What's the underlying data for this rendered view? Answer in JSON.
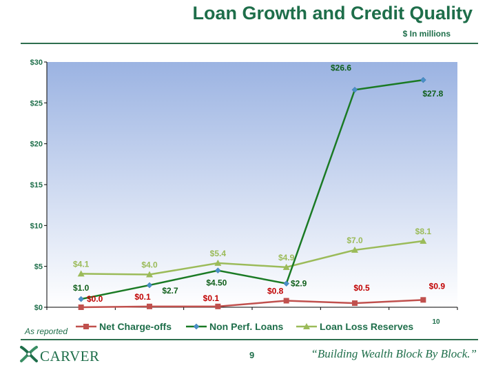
{
  "slide": {
    "title": "Loan Growth and Credit Quality",
    "subtitle": "$ In millions",
    "note": "As reported",
    "page_number": "9",
    "logo_text": "CARVER",
    "tagline": "“Building Wealth Block By Block.”",
    "axis_fragment": "10",
    "colors": {
      "title": "#1e6e4a",
      "rule": "#2e6e4e",
      "plot_top": "#9bb3e2",
      "plot_bottom": "#ffffff"
    }
  },
  "chart_data": {
    "type": "line",
    "categories": [
      "",
      "",
      "",
      "",
      "",
      ""
    ],
    "ylim": [
      0,
      30
    ],
    "yticks": [
      0,
      5,
      10,
      15,
      20,
      25,
      30
    ],
    "ytick_labels": [
      "$0",
      "$5",
      "$10",
      "$15",
      "$20",
      "$25",
      "$30"
    ],
    "grid": false,
    "legend": "bottom",
    "series": [
      {
        "name": "Net Charge-offs",
        "color": "#c0504d",
        "marker": "square",
        "values": [
          0.0,
          0.1,
          0.1,
          0.8,
          0.5,
          0.9
        ],
        "labels": [
          "$0.0",
          "$0.1",
          "$0.1",
          "$0.8",
          "$0.5",
          "$0.9"
        ]
      },
      {
        "name": "Non Perf. Loans",
        "color": "#1a7a24",
        "marker": "diamond",
        "values": [
          1.0,
          2.7,
          4.5,
          2.9,
          26.6,
          27.8
        ],
        "labels": [
          "$1.0",
          "$2.7",
          "$4.50",
          "$2.9",
          "$26.6",
          "$27.8"
        ]
      },
      {
        "name": "Loan Loss Reserves",
        "color": "#9bbb59",
        "marker": "triangle",
        "values": [
          4.1,
          4.0,
          5.4,
          4.9,
          7.0,
          8.1
        ],
        "labels": [
          "$4.1",
          "$4.0",
          "$5.4",
          "$4.9",
          "$7.0",
          "$8.1"
        ]
      }
    ]
  }
}
